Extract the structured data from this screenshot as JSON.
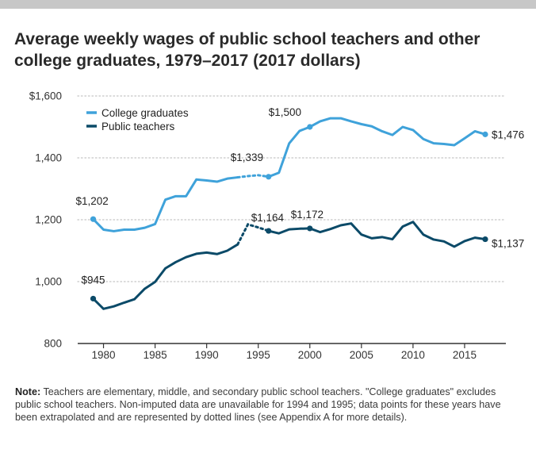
{
  "title": "Average weekly wages of public school teachers and other college graduates, 1979–2017 (2017 dollars)",
  "note": {
    "label": "Note:",
    "text": "Teachers are elementary, middle, and secondary public school teachers. \"College graduates\" excludes public school teachers. Non-imputed data are unavailable for 1994 and 1995; data points for these years have been extrapolated and are represented by dotted lines (see Appendix A for more details)."
  },
  "colors": {
    "college": "#3fa2da",
    "teachers": "#0b4a68",
    "grid": "#cfcfcf",
    "axis": "#333333"
  },
  "chart_data": {
    "type": "line",
    "title": "Average weekly wages of public school teachers and other college graduates, 1979–2017 (2017 dollars)",
    "xlabel": "",
    "ylabel": "",
    "xlim": [
      1977.5,
      2019
    ],
    "ylim": [
      800,
      1600
    ],
    "xticks": [
      1980,
      1985,
      1990,
      1995,
      2000,
      2005,
      2010,
      2015
    ],
    "yticks": [
      800,
      1000,
      1200,
      1400,
      1600
    ],
    "ytick_labels": [
      "800",
      "1,000",
      "1,200",
      "1,400",
      "$1,600"
    ],
    "x": [
      1979,
      1980,
      1981,
      1982,
      1983,
      1984,
      1985,
      1986,
      1987,
      1988,
      1989,
      1990,
      1991,
      1992,
      1993,
      1994,
      1995,
      1996,
      1997,
      1998,
      1999,
      2000,
      2001,
      2002,
      2003,
      2004,
      2005,
      2006,
      2007,
      2008,
      2009,
      2010,
      2011,
      2012,
      2013,
      2014,
      2015,
      2016,
      2017
    ],
    "extrapolated_years": [
      1994,
      1995
    ],
    "legend_position": "top-left",
    "series": [
      {
        "name": "College graduates",
        "key": "college",
        "values": [
          1202,
          1168,
          1163,
          1168,
          1168,
          1174,
          1186,
          1265,
          1276,
          1276,
          1330,
          1327,
          1323,
          1333,
          1337,
          1341,
          1344,
          1339,
          1352,
          1447,
          1487,
          1500,
          1518,
          1528,
          1528,
          1518,
          1509,
          1502,
          1486,
          1474,
          1500,
          1490,
          1461,
          1447,
          1445,
          1441,
          1463,
          1486,
          1476
        ]
      },
      {
        "name": "Public teachers",
        "key": "teachers",
        "values": [
          945,
          912,
          920,
          932,
          943,
          977,
          999,
          1043,
          1063,
          1079,
          1090,
          1094,
          1089,
          1100,
          1120,
          1185,
          1175,
          1164,
          1156,
          1169,
          1171,
          1172,
          1160,
          1170,
          1182,
          1188,
          1152,
          1140,
          1144,
          1137,
          1178,
          1193,
          1152,
          1136,
          1130,
          1113,
          1131,
          1142,
          1137
        ]
      }
    ],
    "annotations": [
      {
        "series": "college",
        "year": 1979,
        "label": "$1,202"
      },
      {
        "series": "college",
        "year": 1996,
        "label": "$1,339"
      },
      {
        "series": "college",
        "year": 2000,
        "label": "$1,500"
      },
      {
        "series": "college",
        "year": 2017,
        "label": "$1,476"
      },
      {
        "series": "teachers",
        "year": 1979,
        "label": "$945"
      },
      {
        "series": "teachers",
        "year": 1996,
        "label": "$1,164"
      },
      {
        "series": "teachers",
        "year": 2000,
        "label": "$1,172"
      },
      {
        "series": "teachers",
        "year": 2017,
        "label": "$1,137"
      }
    ]
  }
}
